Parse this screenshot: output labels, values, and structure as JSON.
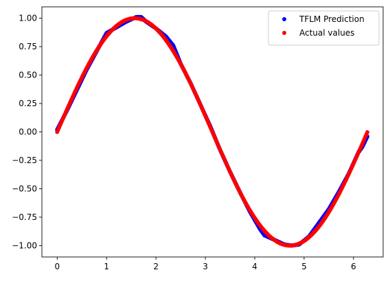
{
  "chart_data": {
    "type": "scatter",
    "xlim": [
      -0.31,
      6.6
    ],
    "ylim": [
      -1.1,
      1.1
    ],
    "xticks": [
      0,
      1,
      2,
      3,
      4,
      5,
      6
    ],
    "xtick_labels": [
      "0",
      "1",
      "2",
      "3",
      "4",
      "5",
      "6"
    ],
    "yticks": [
      1.0,
      0.75,
      0.5,
      0.25,
      0.0,
      -0.25,
      -0.5,
      -0.75,
      -1.0
    ],
    "ytick_labels": [
      "1.00",
      "0.75",
      "0.50",
      "0.25",
      "0.00",
      "−0.25",
      "−0.50",
      "−0.75",
      "−1.00"
    ],
    "grid": false,
    "legend_position": "top-right",
    "series": [
      {
        "name": "TFLM Prediction",
        "color": "#0000ff",
        "marker": "circle",
        "points": [
          [
            0.0,
            0.02
          ],
          [
            0.2,
            0.19
          ],
          [
            0.4,
            0.37
          ],
          [
            0.6,
            0.55
          ],
          [
            0.8,
            0.71
          ],
          [
            1.0,
            0.87
          ],
          [
            1.2,
            0.92
          ],
          [
            1.4,
            0.97
          ],
          [
            1.6,
            1.01
          ],
          [
            1.7,
            1.01
          ],
          [
            1.8,
            0.97
          ],
          [
            2.0,
            0.91
          ],
          [
            2.2,
            0.84
          ],
          [
            2.35,
            0.76
          ],
          [
            2.5,
            0.6
          ],
          [
            2.7,
            0.43
          ],
          [
            2.9,
            0.24
          ],
          [
            3.1,
            0.05
          ],
          [
            3.3,
            -0.16
          ],
          [
            3.5,
            -0.35
          ],
          [
            3.7,
            -0.53
          ],
          [
            3.9,
            -0.7
          ],
          [
            4.1,
            -0.85
          ],
          [
            4.2,
            -0.91
          ],
          [
            4.4,
            -0.95
          ],
          [
            4.6,
            -0.99
          ],
          [
            4.75,
            -1.0
          ],
          [
            4.9,
            -0.99
          ],
          [
            5.1,
            -0.92
          ],
          [
            5.3,
            -0.8
          ],
          [
            5.5,
            -0.68
          ],
          [
            5.7,
            -0.53
          ],
          [
            5.9,
            -0.37
          ],
          [
            6.1,
            -0.18
          ],
          [
            6.18,
            -0.13
          ],
          [
            6.28,
            -0.04
          ]
        ]
      },
      {
        "name": "Actual values",
        "color": "#ff0000",
        "marker": "circle",
        "function": "sin",
        "x_range": [
          0.0,
          6.28
        ],
        "n_points": 320
      }
    ]
  }
}
